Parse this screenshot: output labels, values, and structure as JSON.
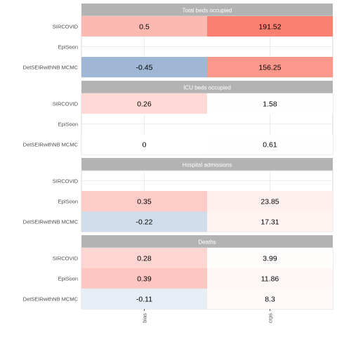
{
  "chart_data": {
    "type": "heatmap",
    "columns": [
      "bias",
      "crps"
    ],
    "rows": [
      "SIRCOVID",
      "EpiSoon",
      "DetSEIRwithNB MCMC"
    ],
    "colors": {
      "positive": "#fa8072",
      "negative": "#9fb7d4",
      "na": "#ffffff",
      "strip": "#b3b3b3",
      "strip_text": "#ffffff",
      "grid": "#ebebeb"
    },
    "panels": [
      {
        "title": "Total beds occupied",
        "cells": [
          {
            "row": "SIRCOVID",
            "col": "bias",
            "label": "0.5",
            "shade": 0.55
          },
          {
            "row": "SIRCOVID",
            "col": "crps",
            "label": "191.52",
            "shade": 1.0
          },
          {
            "row": "DetSEIRwithNB MCMC",
            "col": "bias",
            "label": "-0.45",
            "shade": -1.0
          },
          {
            "row": "DetSEIRwithNB MCMC",
            "col": "crps",
            "label": "156.25",
            "shade": 0.82
          }
        ]
      },
      {
        "title": "ICU beds occupied",
        "cells": [
          {
            "row": "SIRCOVID",
            "col": "bias",
            "label": "0.26",
            "shade": 0.3
          },
          {
            "row": "SIRCOVID",
            "col": "crps",
            "label": "1.58",
            "shade": 0.01
          },
          {
            "row": "DetSEIRwithNB MCMC",
            "col": "bias",
            "label": "0",
            "shade": 0
          },
          {
            "row": "DetSEIRwithNB MCMC",
            "col": "crps",
            "label": "0.61",
            "shade": 0.005
          }
        ]
      },
      {
        "title": "Hospital admissions",
        "cells": [
          {
            "row": "EpiSoon",
            "col": "bias",
            "label": "0.35",
            "shade": 0.4
          },
          {
            "row": "EpiSoon",
            "col": "crps",
            "label": "23.85",
            "shade": 0.12
          },
          {
            "row": "DetSEIRwithNB MCMC",
            "col": "bias",
            "label": "-0.22",
            "shade": -0.48
          },
          {
            "row": "DetSEIRwithNB MCMC",
            "col": "crps",
            "label": "17.31",
            "shade": 0.09
          }
        ]
      },
      {
        "title": "Deaths",
        "cells": [
          {
            "row": "SIRCOVID",
            "col": "bias",
            "label": "0.28",
            "shade": 0.32
          },
          {
            "row": "SIRCOVID",
            "col": "crps",
            "label": "3.99",
            "shade": 0.02
          },
          {
            "row": "EpiSoon",
            "col": "bias",
            "label": "0.39",
            "shade": 0.45
          },
          {
            "row": "EpiSoon",
            "col": "crps",
            "label": "11.86",
            "shade": 0.06
          },
          {
            "row": "DetSEIRwithNB MCMC",
            "col": "bias",
            "label": "-0.11",
            "shade": -0.25
          },
          {
            "row": "DetSEIRwithNB MCMC",
            "col": "crps",
            "label": "8.3",
            "shade": 0.04
          }
        ]
      }
    ]
  }
}
